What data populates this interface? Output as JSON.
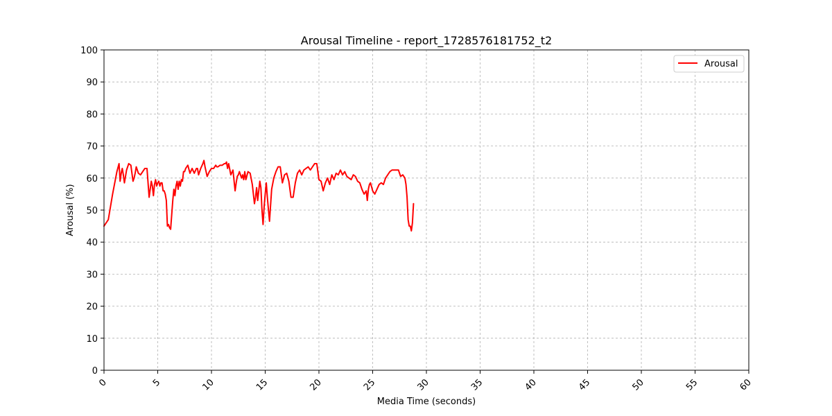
{
  "chart_data": {
    "type": "line",
    "title": "Arousal Timeline - report_1728576181752_t2",
    "xlabel": "Media Time (seconds)",
    "ylabel": "Arousal (%)",
    "xlim": [
      0,
      60
    ],
    "ylim": [
      0,
      100
    ],
    "x_ticks": [
      0,
      5,
      10,
      15,
      20,
      25,
      30,
      35,
      40,
      45,
      50,
      55,
      60
    ],
    "y_ticks": [
      0,
      10,
      20,
      30,
      40,
      50,
      60,
      70,
      80,
      90,
      100
    ],
    "grid": true,
    "legend_position": "top-right",
    "series": [
      {
        "name": "Arousal",
        "color": "#ff0000",
        "x": [
          0.0,
          0.2,
          0.4,
          0.6,
          0.8,
          1.0,
          1.2,
          1.4,
          1.5,
          1.6,
          1.7,
          1.8,
          1.9,
          2.0,
          2.1,
          2.3,
          2.5,
          2.7,
          2.8,
          2.9,
          3.0,
          3.2,
          3.4,
          3.6,
          3.8,
          4.0,
          4.2,
          4.4,
          4.5,
          4.6,
          4.7,
          4.8,
          4.9,
          5.0,
          5.1,
          5.2,
          5.3,
          5.4,
          5.5,
          5.6,
          5.7,
          5.8,
          5.9,
          6.0,
          6.1,
          6.2,
          6.3,
          6.4,
          6.5,
          6.6,
          6.7,
          6.8,
          6.9,
          7.0,
          7.1,
          7.2,
          7.3,
          7.4,
          7.5,
          7.6,
          7.7,
          7.8,
          8.0,
          8.2,
          8.4,
          8.6,
          8.7,
          8.8,
          9.0,
          9.2,
          9.3,
          9.4,
          9.6,
          9.8,
          10.0,
          10.2,
          10.4,
          10.5,
          10.6,
          10.8,
          11.0,
          11.2,
          11.3,
          11.4,
          11.5,
          11.6,
          11.8,
          12.0,
          12.2,
          12.3,
          12.4,
          12.5,
          12.6,
          12.7,
          12.8,
          12.9,
          13.0,
          13.1,
          13.2,
          13.4,
          13.6,
          13.8,
          14.0,
          14.1,
          14.2,
          14.3,
          14.4,
          14.5,
          14.6,
          14.7,
          14.8,
          14.9,
          15.0,
          15.1,
          15.2,
          15.4,
          15.6,
          15.8,
          16.0,
          16.2,
          16.4,
          16.6,
          16.8,
          17.0,
          17.2,
          17.4,
          17.6,
          17.8,
          18.0,
          18.2,
          18.4,
          18.6,
          18.8,
          19.0,
          19.2,
          19.4,
          19.6,
          19.8,
          20.0,
          20.2,
          20.4,
          20.6,
          20.8,
          21.0,
          21.2,
          21.4,
          21.6,
          21.8,
          22.0,
          22.2,
          22.4,
          22.6,
          22.8,
          23.0,
          23.2,
          23.4,
          23.6,
          23.8,
          24.0,
          24.2,
          24.4,
          24.5,
          24.6,
          24.7,
          24.8,
          25.0,
          25.2,
          25.4,
          25.6,
          25.8,
          26.0,
          26.2,
          26.4,
          26.6,
          26.8,
          27.0,
          27.2,
          27.4,
          27.6,
          27.8,
          28.0,
          28.1,
          28.2,
          28.3,
          28.4,
          28.5,
          28.6,
          28.7,
          28.8
        ],
        "values": [
          45.0,
          46.0,
          47.0,
          51.0,
          55.0,
          58.5,
          62.0,
          64.5,
          59.0,
          61.5,
          63.0,
          61.0,
          58.5,
          60.5,
          62.5,
          64.5,
          64.0,
          59.0,
          60.0,
          61.5,
          63.5,
          61.5,
          61.0,
          62.0,
          63.0,
          63.0,
          54.0,
          59.0,
          57.5,
          54.5,
          58.0,
          59.5,
          57.5,
          58.5,
          59.0,
          57.5,
          58.5,
          58.5,
          56.0,
          56.0,
          55.0,
          53.0,
          45.0,
          45.5,
          44.5,
          44.0,
          48.5,
          53.0,
          56.5,
          54.5,
          57.5,
          59.0,
          56.5,
          59.0,
          57.5,
          59.5,
          59.0,
          62.0,
          62.0,
          63.0,
          63.5,
          64.0,
          61.5,
          63.0,
          61.5,
          63.0,
          63.0,
          61.0,
          63.0,
          64.5,
          65.5,
          63.5,
          60.5,
          62.0,
          63.0,
          63.0,
          64.0,
          63.5,
          63.5,
          64.0,
          64.0,
          64.5,
          64.5,
          65.0,
          63.0,
          64.5,
          61.0,
          62.5,
          56.0,
          58.5,
          60.5,
          61.0,
          62.0,
          61.0,
          60.0,
          61.0,
          59.5,
          62.0,
          59.5,
          62.0,
          61.5,
          58.0,
          52.0,
          54.0,
          57.0,
          53.0,
          56.0,
          59.0,
          57.0,
          50.0,
          45.5,
          51.0,
          55.0,
          58.5,
          54.0,
          46.5,
          56.5,
          60.0,
          62.0,
          63.5,
          63.5,
          58.5,
          61.0,
          61.5,
          59.0,
          54.0,
          54.0,
          58.5,
          61.5,
          62.5,
          61.0,
          62.5,
          63.0,
          63.5,
          62.5,
          63.5,
          64.5,
          64.5,
          59.5,
          59.0,
          56.0,
          58.5,
          60.0,
          58.0,
          61.0,
          59.5,
          61.5,
          61.0,
          62.5,
          61.0,
          62.0,
          60.5,
          60.0,
          59.5,
          61.0,
          60.5,
          59.0,
          58.5,
          56.5,
          55.0,
          56.0,
          53.0,
          56.5,
          58.0,
          58.5,
          56.0,
          55.0,
          56.5,
          58.0,
          58.5,
          58.0,
          60.0,
          61.0,
          62.0,
          62.5,
          62.5,
          62.5,
          62.5,
          60.5,
          61.0,
          60.0,
          58.0,
          54.0,
          47.0,
          45.0,
          45.0,
          43.5,
          46.0,
          52.0
        ]
      }
    ]
  }
}
